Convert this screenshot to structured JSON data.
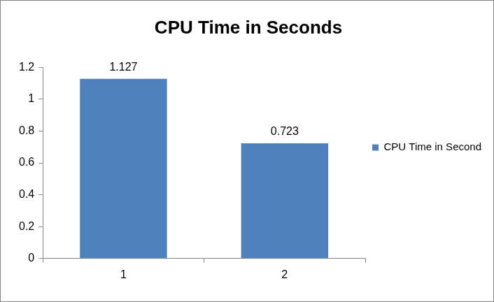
{
  "chart_data": {
    "type": "bar",
    "title": "CPU Time in Seconds",
    "categories": [
      "1",
      "2"
    ],
    "series": [
      {
        "name": "CPU Time in Seconds",
        "color": "#4f81bd",
        "values": [
          1.127,
          0.723
        ]
      }
    ],
    "ylim": [
      0,
      1.2
    ],
    "yticks": [
      0,
      0.2,
      0.4,
      0.6,
      0.8,
      1,
      1.2
    ],
    "grid": false,
    "legend": "right",
    "data_labels": true
  }
}
